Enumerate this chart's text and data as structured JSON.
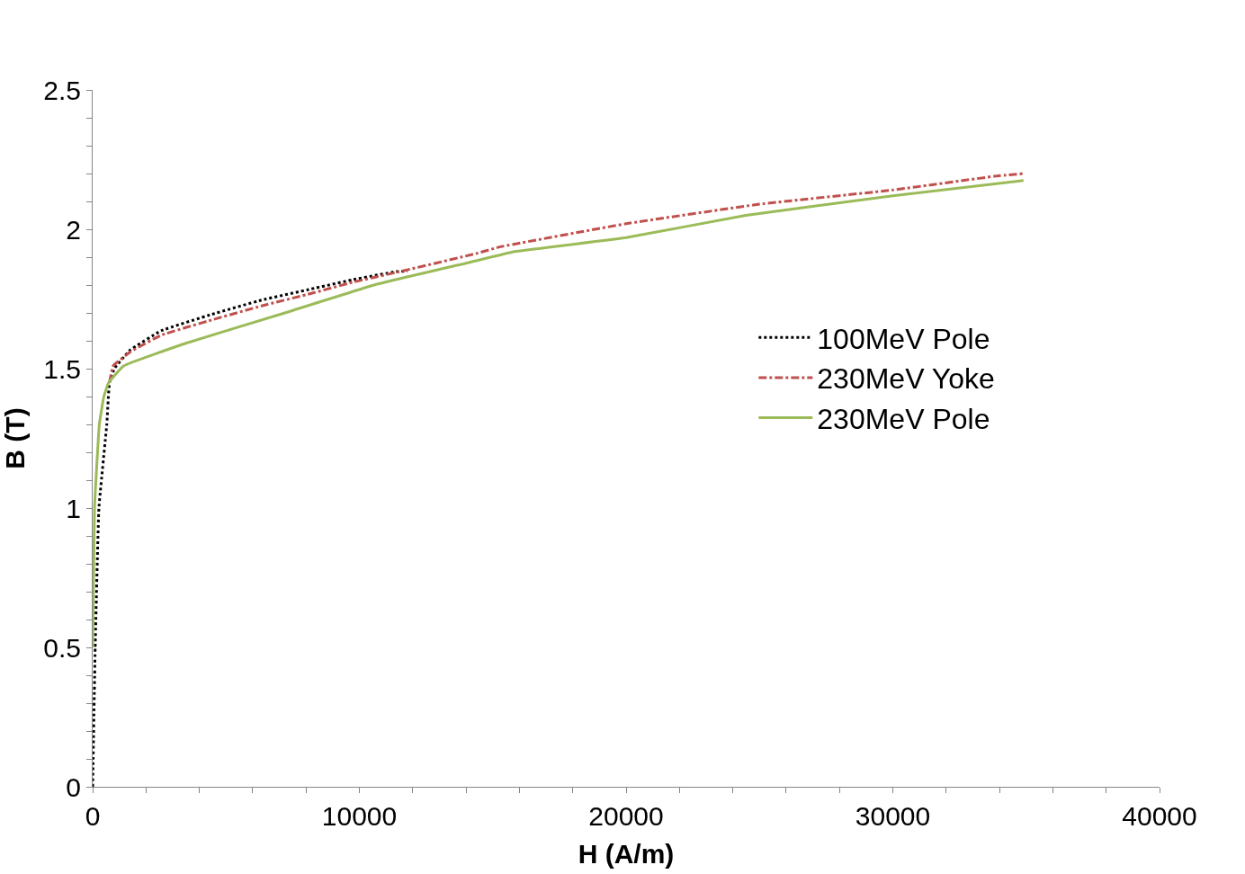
{
  "chart_data": {
    "type": "line",
    "xlabel": "H (A/m)",
    "ylabel": "B (T)",
    "xlim": [
      0,
      40000
    ],
    "xticks": [
      0,
      10000,
      20000,
      30000,
      40000
    ],
    "ylim": [
      0,
      2.5
    ],
    "yticks": [
      0,
      0.5,
      1,
      1.5,
      2,
      2.5
    ],
    "legend": "right",
    "marker": "none",
    "series": [
      {
        "name": "100MeV Pole",
        "color": "#000000",
        "line_style": "dotted",
        "x": [
          0,
          95,
          235,
          530,
          630,
          810,
          1410,
          2570,
          4470,
          6330,
          8200,
          9740,
          11370,
          11800
        ],
        "values": [
          0,
          0.5,
          1.0,
          1.3,
          1.45,
          1.5,
          1.567,
          1.636,
          1.695,
          1.746,
          1.786,
          1.819,
          1.848,
          1.85
        ]
      },
      {
        "name": "230MeV Yoke",
        "color": "#c0504d",
        "line_style": "dashdot",
        "x": [
          630,
          770,
          1410,
          2570,
          4470,
          6330,
          8200,
          9740,
          11370,
          14420,
          15230,
          20000,
          25000,
          30000,
          33800,
          34900
        ],
        "values": [
          1.45,
          1.51,
          1.56,
          1.62,
          1.675,
          1.725,
          1.77,
          1.81,
          1.845,
          1.914,
          1.936,
          2.02,
          2.09,
          2.141,
          2.19,
          2.2
        ]
      },
      {
        "name": "230MeV Pole",
        "color": "#9bbb59",
        "line_style": "solid",
        "x": [
          0,
          70,
          250,
          420,
          600,
          1160,
          3520,
          7040,
          10550,
          14070,
          15830,
          20000,
          24490,
          30000,
          34900
        ],
        "values": [
          0.5,
          1.0,
          1.3,
          1.4,
          1.45,
          1.51,
          1.592,
          1.695,
          1.8,
          1.88,
          1.92,
          1.97,
          2.05,
          2.12,
          2.175
        ]
      }
    ]
  }
}
